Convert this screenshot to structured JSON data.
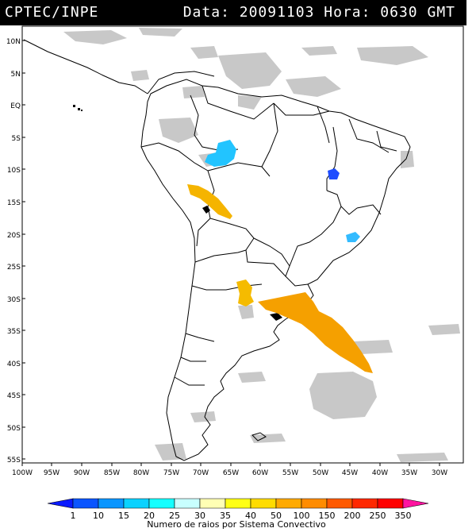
{
  "header": {
    "left": "CPTEC/INPE",
    "right": "Data: 20091103 Hora: 0630 GMT"
  },
  "map": {
    "lat_labels": [
      "10N",
      "5N",
      "EQ",
      "5S",
      "10S",
      "15S",
      "20S",
      "25S",
      "30S",
      "35S",
      "40S",
      "45S",
      "50S",
      "55S"
    ],
    "lon_labels": [
      "100W",
      "95W",
      "90W",
      "85W",
      "80W",
      "75W",
      "70W",
      "65W",
      "60W",
      "55W",
      "50W",
      "45W",
      "40W",
      "35W",
      "30W"
    ],
    "cloud_color": "#c8c8c8",
    "storm_cells": [
      {
        "region": "western Amazon",
        "color": "#22c4ff"
      },
      {
        "region": "central Brazil",
        "color": "#1e4dff"
      },
      {
        "region": "southeast Brazil",
        "color": "#33bbff"
      },
      {
        "region": "Bolivia",
        "color": "#f5b400"
      },
      {
        "region": "northern Argentina",
        "color": "#f5bb00"
      },
      {
        "region": "Uruguay / South Atlantic",
        "color": "#f5a000"
      }
    ]
  },
  "legend": {
    "ticks": [
      "1",
      "10",
      "15",
      "20",
      "25",
      "30",
      "35",
      "40",
      "50",
      "100",
      "150",
      "200",
      "250",
      "350"
    ],
    "colors": [
      "#0a1aff",
      "#0a55ff",
      "#0a96ff",
      "#0ad2ff",
      "#14ffff",
      "#c8ffff",
      "#ffffb4",
      "#ffff14",
      "#ffdc00",
      "#ffaa00",
      "#ff8c00",
      "#ff5a00",
      "#ff2800",
      "#ff0000",
      "#ff14a0"
    ],
    "caption": "Numero de raios por Sistema Convectivo"
  }
}
